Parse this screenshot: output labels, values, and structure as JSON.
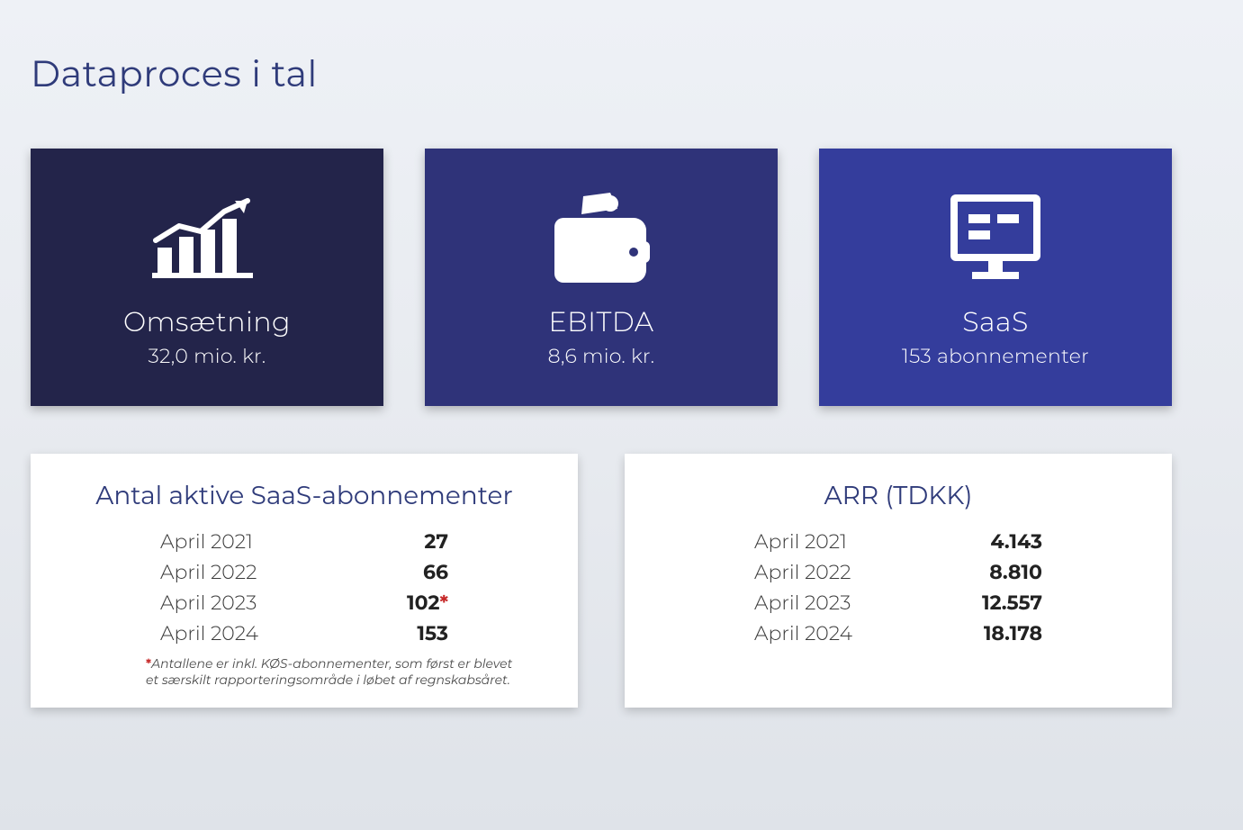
{
  "colors": {
    "title": "#2f3b7a",
    "card1_bg": "#23244a",
    "card2_bg": "#2f3379",
    "card3_bg": "#343d9c",
    "icon_fill": "#ffffff",
    "white": "#ffffff",
    "text_dark": "#3a3a3a",
    "table_title": "#2f3b7a",
    "star": "#c62828"
  },
  "title": "Dataproces i tal",
  "kpi": {
    "revenue": {
      "label": "Omsætning",
      "value": "32,0 mio. kr."
    },
    "ebitda": {
      "label": "EBITDA",
      "value": "8,6 mio. kr."
    },
    "saas": {
      "label": "SaaS",
      "value": "153 abonnementer"
    }
  },
  "tables": {
    "subs": {
      "title": "Antal aktive SaaS-abonnementer",
      "rows": [
        {
          "period": "April 2021",
          "value": "27",
          "star": false
        },
        {
          "period": "April 2022",
          "value": "66",
          "star": false
        },
        {
          "period": "April 2023",
          "value": "102",
          "star": true
        },
        {
          "period": "April 2024",
          "value": "153",
          "star": false
        }
      ],
      "footnote_star": "*",
      "footnote": "Antallene er inkl. KØS-abonnementer, som først er blevet et særskilt rapporteringsområde i løbet af regnskabsåret."
    },
    "arr": {
      "title": "ARR (TDKK)",
      "rows": [
        {
          "period": "April 2021",
          "value": "4.143"
        },
        {
          "period": "April 2022",
          "value": "8.810"
        },
        {
          "period": "April 2023",
          "value": "12.557"
        },
        {
          "period": "April 2024",
          "value": "18.178"
        }
      ]
    }
  }
}
